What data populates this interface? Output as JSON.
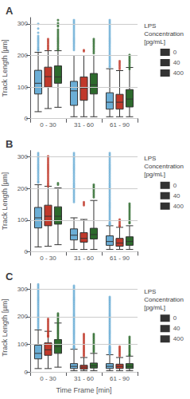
{
  "chart_data": [
    {
      "type": "box",
      "title": "A",
      "ylabel": "Track Length [µm]",
      "categories": [
        "0 - 30",
        "31 - 60",
        "61 - 90"
      ],
      "legend_title": "LPS\nConcentration\n[pg/mL]",
      "legend": "upper right",
      "grid": true,
      "ylim": [
        0,
        320
      ],
      "yticks": [
        0,
        100,
        200,
        300
      ],
      "series": [
        {
          "name": "0",
          "color": "#6baed6",
          "boxes": [
            {
              "q1": 78,
              "med": 112,
              "q3": 153,
              "whislo": 22,
              "whishi": 210
            },
            {
              "q1": 42,
              "med": 88,
              "q3": 118,
              "whislo": 6,
              "whishi": 200
            },
            {
              "q1": 30,
              "med": 52,
              "q3": 82,
              "whislo": 6,
              "whishi": 158
            }
          ],
          "fliers": [
            [
              300,
              285,
              272,
              262,
              257,
              252,
              247,
              242,
              237,
              232,
              227,
              223,
              219,
              216
            ],
            [
              312,
              307,
              302,
              297,
              292,
              287,
              282,
              277,
              272,
              267,
              262,
              257,
              252,
              247,
              242,
              237,
              232,
              227,
              222,
              217
            ],
            [
              312,
              307,
              302,
              297,
              292,
              287,
              282,
              277,
              272,
              267,
              262,
              257,
              252,
              247,
              242,
              237,
              232,
              227,
              222,
              217,
              212,
              207,
              202,
              197,
              192,
              187,
              182,
              177,
              172,
              167,
              163
            ]
          ]
        },
        {
          "name": "40",
          "color": "#C0392B",
          "boxes": [
            {
              "q1": 100,
              "med": 133,
              "q3": 163,
              "whislo": 32,
              "whishi": 215
            },
            {
              "q1": 58,
              "med": 97,
              "q3": 132,
              "whislo": 6,
              "whishi": 200
            },
            {
              "q1": 30,
              "med": 52,
              "q3": 77,
              "whislo": 6,
              "whishi": 152
            }
          ],
          "fliers": [
            [
              252,
              247,
              242,
              237,
              232,
              228,
              223,
              219
            ],
            [
              217,
              213
            ],
            [
              182,
              177,
              172,
              167,
              162,
              157
            ]
          ]
        },
        {
          "name": "400",
          "color": "#2d6a2d",
          "boxes": [
            {
              "q1": 112,
              "med": 132,
              "q3": 167,
              "whislo": 36,
              "whishi": 215
            },
            {
              "q1": 78,
              "med": 107,
              "q3": 143,
              "whislo": 6,
              "whishi": 200
            },
            {
              "q1": 37,
              "med": 62,
              "q3": 92,
              "whislo": 6,
              "whishi": 162
            }
          ],
          "fliers": [
            [
              312,
              302,
              297,
              292,
              282,
              277,
              272,
              267,
              262,
              257,
              252,
              247,
              242,
              237,
              232,
              227,
              222,
              218
            ],
            [
              252,
              247,
              242,
              237,
              232,
              227,
              222,
              217,
              212,
              207
            ],
            [
              202,
              197,
              192,
              187,
              182,
              177,
              172,
              167,
              162,
              157
            ]
          ]
        }
      ]
    },
    {
      "type": "box",
      "title": "B",
      "ylabel": "Track Length [µm]",
      "categories": [
        "0 - 30",
        "31 - 60",
        "61 - 90"
      ],
      "legend_title": "LPS\nConcentration\n[pg/mL]",
      "legend": "upper right",
      "grid": true,
      "ylim": [
        0,
        320
      ],
      "yticks": [
        0,
        100,
        200,
        300
      ],
      "series": [
        {
          "name": "0",
          "color": "#6baed6",
          "boxes": [
            {
              "q1": 75,
              "med": 107,
              "q3": 140,
              "whislo": 15,
              "whishi": 212
            },
            {
              "q1": 37,
              "med": 52,
              "q3": 72,
              "whislo": 7,
              "whishi": 107
            },
            {
              "q1": 20,
              "med": 32,
              "q3": 50,
              "whislo": 7,
              "whishi": 82
            }
          ],
          "fliers": [
            [
              312,
              307,
              302,
              297,
              292,
              287,
              282,
              277,
              272,
              267,
              262,
              257,
              252,
              247,
              242,
              237,
              232,
              227,
              222,
              219
            ],
            [
              312,
              307,
              302,
              297,
              292,
              287,
              282,
              277,
              272,
              267,
              262,
              257,
              252,
              247,
              242,
              237,
              232,
              227,
              222,
              217,
              212,
              207,
              202,
              197,
              192,
              187,
              182,
              177,
              172,
              167,
              162,
              157
            ],
            [
              312,
              307,
              302,
              297,
              292,
              287,
              282,
              277,
              272,
              267,
              262,
              257,
              252,
              247,
              242,
              237,
              232,
              227,
              222,
              217,
              212,
              207,
              202,
              197,
              192,
              187,
              182,
              177,
              172,
              167,
              162,
              157,
              152,
              147,
              142,
              137,
              132,
              127,
              122,
              117,
              112,
              107,
              102,
              97,
              92,
              90,
              87,
              85
            ]
          ]
        },
        {
          "name": "40",
          "color": "#C0392B",
          "boxes": [
            {
              "q1": 82,
              "med": 112,
              "q3": 147,
              "whislo": 17,
              "whishi": 207
            },
            {
              "q1": 30,
              "med": 42,
              "q3": 60,
              "whislo": 7,
              "whishi": 102
            },
            {
              "q1": 17,
              "med": 27,
              "q3": 42,
              "whislo": 7,
              "whishi": 77
            }
          ],
          "fliers": [
            [
              302,
              297,
              292,
              287,
              282,
              277,
              272,
              267,
              262,
              257,
              252,
              247,
              242,
              237,
              232,
              227,
              222,
              217,
              212,
              207
            ],
            [
              157,
              152,
              147
            ],
            [
              102,
              97,
              92,
              87,
              82,
              80
            ]
          ]
        },
        {
          "name": "400",
          "color": "#2d6a2d",
          "boxes": [
            {
              "q1": 87,
              "med": 112,
              "q3": 142,
              "whislo": 22,
              "whishi": 202
            },
            {
              "q1": 40,
              "med": 54,
              "q3": 74,
              "whislo": 7,
              "whishi": 162
            },
            {
              "q1": 20,
              "med": 32,
              "q3": 47,
              "whislo": 7,
              "whishi": 82
            }
          ],
          "fliers": [
            [
              217,
              212
            ],
            [
              212,
              207,
              202,
              197,
              192,
              187,
              182,
              177,
              172
            ],
            [
              152,
              147,
              142,
              137,
              132,
              127,
              122,
              117,
              112,
              107,
              102,
              97,
              92,
              90
            ]
          ]
        }
      ]
    },
    {
      "type": "box",
      "title": "C",
      "ylabel": "Track Length [µm]",
      "xlabel": "Time Frame [min]",
      "categories": [
        "0 - 30",
        "31 - 60",
        "61 - 90"
      ],
      "legend_title": "LPS\nConcentration\n[pg/mL]",
      "legend": "upper right",
      "grid": true,
      "ylim": [
        0,
        320
      ],
      "yticks": [
        0,
        100,
        200,
        300
      ],
      "series": [
        {
          "name": "0",
          "color": "#6baed6",
          "boxes": [
            {
              "q1": 47,
              "med": 67,
              "q3": 97,
              "whislo": 12,
              "whishi": 152
            },
            {
              "q1": 12,
              "med": 20,
              "q3": 30,
              "whislo": 4,
              "whishi": 82
            },
            {
              "q1": 12,
              "med": 20,
              "q3": 30,
              "whislo": 4,
              "whishi": 62
            }
          ],
          "fliers": [
            [
              317,
              312,
              307,
              302,
              297,
              292,
              287,
              282,
              277,
              272,
              267,
              262,
              257,
              252,
              247,
              242,
              237,
              232,
              227,
              222,
              217,
              212,
              207,
              202,
              197,
              192,
              187,
              182,
              177,
              172,
              167,
              162,
              157
            ],
            [
              312,
              307,
              302,
              297,
              292,
              287,
              282,
              277,
              272,
              267,
              262,
              257,
              252,
              247,
              242,
              237,
              232,
              227,
              222,
              217,
              212,
              207,
              202,
              197,
              192,
              187,
              182,
              177,
              172,
              167,
              162,
              157,
              152,
              147,
              142,
              137,
              132,
              127,
              122,
              117,
              112,
              107,
              102,
              97,
              92,
              90,
              87,
              85
            ],
            [
              272,
              267,
              262,
              257,
              252,
              247,
              242,
              237,
              232,
              227,
              222,
              217,
              212,
              207,
              202,
              197,
              192,
              187,
              182,
              177,
              172,
              167,
              162,
              157,
              152,
              147,
              142,
              137,
              132,
              127,
              122,
              117,
              112,
              107,
              102,
              97,
              92,
              90,
              87,
              85,
              82,
              80,
              77,
              74,
              72,
              70,
              67,
              65
            ]
          ]
        },
        {
          "name": "40",
          "color": "#C0392B",
          "boxes": [
            {
              "q1": 60,
              "med": 80,
              "q3": 105,
              "whislo": 12,
              "whishi": 147
            },
            {
              "q1": 10,
              "med": 17,
              "q3": 24,
              "whislo": 4,
              "whishi": 52
            },
            {
              "q1": 12,
              "med": 20,
              "q3": 28,
              "whislo": 4,
              "whishi": 52
            }
          ],
          "fliers": [
            [
              192,
              187,
              182,
              177,
              172,
              167,
              162,
              157,
              152,
              147,
              142,
              137,
              132,
              130,
              127
            ],
            [
              137,
              132,
              127,
              122,
              117,
              112,
              107,
              102,
              97,
              92,
              87,
              82,
              77,
              72,
              67,
              62,
              57
            ],
            [
              92,
              87,
              82,
              77,
              72,
              67,
              62,
              57
            ]
          ]
        },
        {
          "name": "400",
          "color": "#2d6a2d",
          "boxes": [
            {
              "q1": 67,
              "med": 92,
              "q3": 117,
              "whislo": 17,
              "whishi": 177
            },
            {
              "q1": 14,
              "med": 22,
              "q3": 32,
              "whislo": 4,
              "whishi": 67
            },
            {
              "q1": 12,
              "med": 20,
              "q3": 30,
              "whislo": 4,
              "whishi": 57
            }
          ],
          "fliers": [
            [
              212,
              207,
              202,
              197,
              192,
              187,
              182,
              177,
              172,
              167,
              162,
              157,
              152,
              147,
              142,
              137,
              132,
              127,
              122,
              117,
              112,
              107,
              102,
              100
            ],
            [
              137,
              132,
              127,
              122,
              117,
              112,
              107,
              102,
              97,
              92,
              87,
              82,
              77,
              72
            ],
            [
              127,
              122,
              117,
              112,
              107,
              102,
              97,
              92,
              87,
              82,
              77,
              72,
              67,
              62,
              60
            ]
          ]
        }
      ]
    }
  ]
}
